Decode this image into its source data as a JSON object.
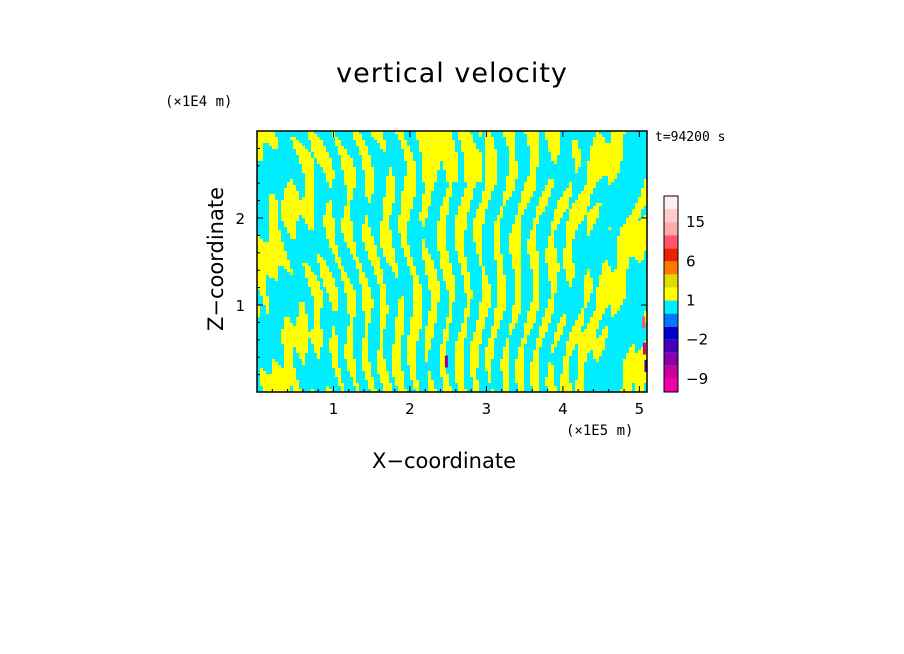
{
  "chart_data": {
    "type": "heatmap",
    "title": "vertical velocity",
    "xlabel": "X−coordinate",
    "ylabel": "Z−coordinate",
    "x_unit": "(×1E5 m)",
    "z_unit": "(×1E4 m)",
    "time_label": "t=94200 s",
    "xlim": [
      0,
      5.1
    ],
    "ylim": [
      0,
      3.0
    ],
    "x_ticks": [
      1,
      2,
      3,
      4,
      5
    ],
    "x_tick_labels": [
      "1",
      "2",
      "3",
      "4",
      "5"
    ],
    "y_ticks": [
      1,
      2
    ],
    "y_tick_labels": [
      "1",
      "2"
    ],
    "dominant_colors": [
      "#00eeff",
      "#ffff00"
    ],
    "colorbar": {
      "levels": [
        -12,
        -9,
        -6,
        -4,
        -2,
        -1,
        0,
        1,
        2,
        4,
        6,
        9,
        12,
        15,
        18,
        21
      ],
      "colors": [
        "#ee00aa",
        "#cc0099",
        "#8800aa",
        "#4400bb",
        "#0000cc",
        "#0077ff",
        "#00eeff",
        "#ffff00",
        "#dddd00",
        "#ff7700",
        "#ee2200",
        "#ff5566",
        "#ffaaaa",
        "#ffcccc",
        "#ffeeee"
      ],
      "labels": [
        {
          "value": -9,
          "text": "−9"
        },
        {
          "value": -2,
          "text": "−2"
        },
        {
          "value": 1,
          "text": "1"
        },
        {
          "value": 6,
          "text": "6"
        },
        {
          "value": 15,
          "text": "15"
        }
      ]
    }
  }
}
